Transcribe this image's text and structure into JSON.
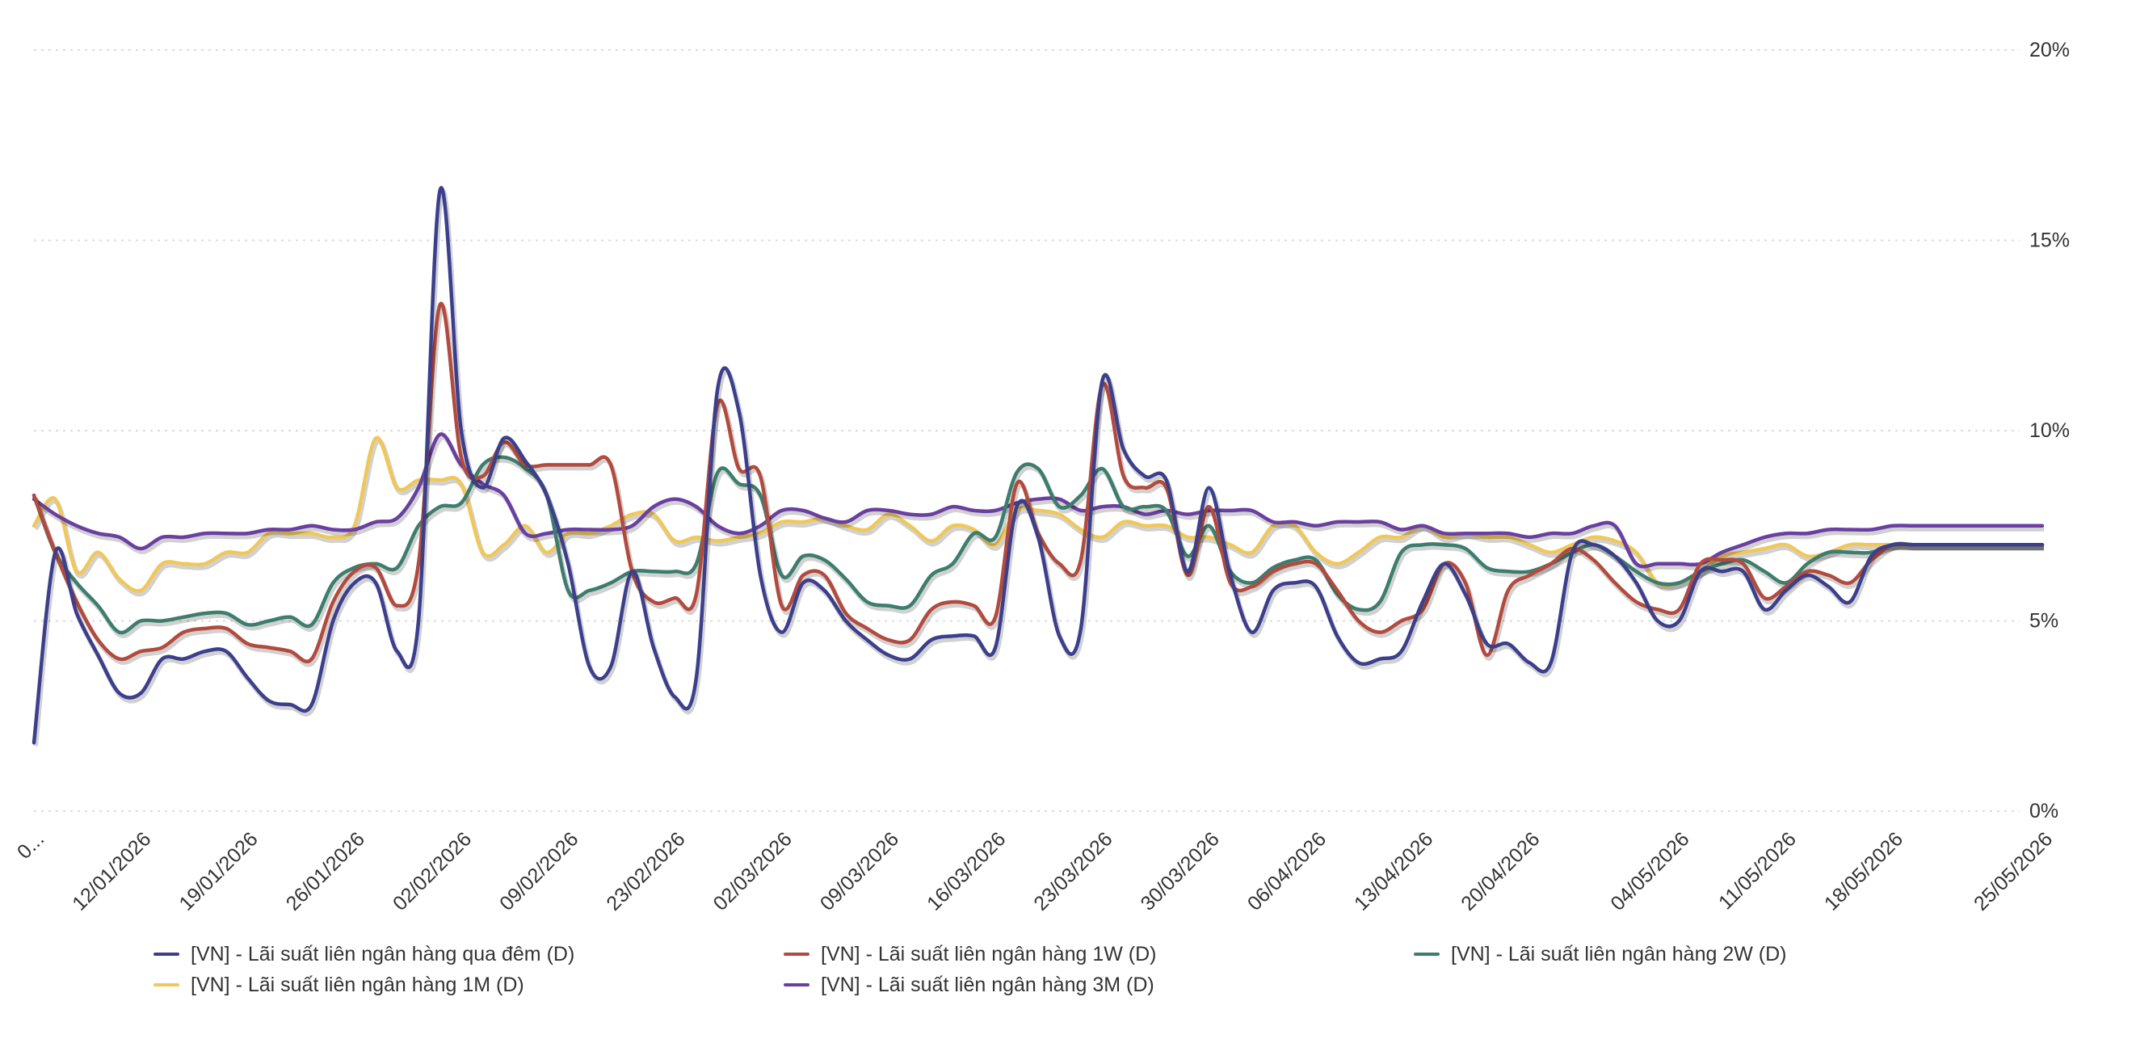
{
  "chart_data": {
    "type": "line",
    "y_ticks": [
      "0%",
      "5%",
      "10%",
      "15%",
      "20%"
    ],
    "ylim": [
      0,
      20
    ],
    "y_unit": "%",
    "grid": true,
    "legend_position": "bottom",
    "x_tick_labels": [
      "0...",
      "12/01/2026",
      "19/01/2026",
      "26/01/2026",
      "02/02/2026",
      "09/02/2026",
      "23/02/2026",
      "02/03/2026",
      "09/03/2026",
      "16/03/2026",
      "23/03/2026",
      "30/03/2026",
      "06/04/2026",
      "13/04/2026",
      "20/04/2026",
      "04/05/2026",
      "11/05/2026",
      "18/05/2026",
      "25/05/2026"
    ],
    "x_tick_positions": [
      0,
      5,
      10,
      15,
      20,
      25,
      30,
      35,
      40,
      45,
      50,
      55,
      60,
      65,
      70,
      77,
      82,
      87,
      94
    ],
    "x_range": [
      0,
      94
    ],
    "series": [
      {
        "name": "[VN] - Lãi suất liên ngân hàng qua đêm (D)",
        "color": "#3b3f8c",
        "x": [
          0,
          1,
          2,
          3,
          4,
          5,
          6,
          7,
          8,
          9,
          10,
          11,
          12,
          13,
          14,
          15,
          16,
          17,
          18,
          19,
          20,
          21,
          22,
          23,
          24,
          25,
          26,
          27,
          28,
          29,
          30,
          31,
          32,
          33,
          34,
          35,
          36,
          37,
          38,
          39,
          40,
          41,
          42,
          43,
          44,
          45,
          46,
          47,
          48,
          49,
          50,
          51,
          52,
          53,
          54,
          55,
          56,
          57,
          58,
          59,
          60,
          61,
          62,
          63,
          64,
          65,
          66,
          67,
          68,
          69,
          70,
          71,
          72,
          73,
          74,
          75,
          76,
          77,
          78,
          79,
          80,
          81,
          82,
          83,
          84,
          85,
          86,
          87,
          88,
          89,
          90,
          91,
          92,
          93,
          94
        ],
        "values": [
          1.8,
          6.8,
          5.2,
          4.1,
          3.1,
          3.1,
          4,
          4,
          4.2,
          4.2,
          3.5,
          2.9,
          2.8,
          2.8,
          5,
          6,
          6,
          4.2,
          5,
          16.3,
          10,
          8.5,
          9.8,
          9.2,
          8.3,
          6.5,
          3.8,
          3.8,
          6.3,
          4.3,
          3,
          3.5,
          11.1,
          10.5,
          6.2,
          4.7,
          6,
          5.8,
          5,
          4.5,
          4.1,
          4,
          4.5,
          4.6,
          4.6,
          4.3,
          8,
          7.2,
          4.6,
          4.8,
          11.3,
          9.5,
          8.8,
          8.7,
          6.3,
          8.5,
          6.2,
          4.7,
          5.8,
          6,
          5.9,
          4.6,
          3.9,
          4,
          4.2,
          5.5,
          6.5,
          5.7,
          4.4,
          4.4,
          3.9,
          3.9,
          6.8,
          7,
          6.7,
          6,
          5,
          5,
          6.3,
          6.3,
          6.3,
          5.3,
          5.8,
          6.2,
          5.9,
          5.5,
          6.7,
          7,
          7,
          7,
          7,
          7,
          7,
          7,
          7
        ],
        "x_order": null
      },
      {
        "name": "[VN] - Lãi suất liên ngân hàng 1W (D)",
        "color": "#b34a3e",
        "x": [
          0,
          1,
          2,
          3,
          4,
          5,
          6,
          7,
          8,
          9,
          10,
          11,
          12,
          13,
          14,
          15,
          16,
          17,
          18,
          19,
          20,
          21,
          22,
          23,
          24,
          25,
          26,
          27,
          28,
          29,
          30,
          31,
          32,
          33,
          34,
          35,
          36,
          37,
          38,
          39,
          40,
          41,
          42,
          43,
          44,
          45,
          46,
          47,
          48,
          49,
          50,
          51,
          52,
          53,
          54,
          55,
          56,
          57,
          58,
          59,
          60,
          61,
          62,
          63,
          64,
          65,
          66,
          67,
          68,
          69,
          70,
          71,
          72,
          73,
          74,
          75,
          76,
          77,
          78,
          79,
          80,
          81,
          82,
          83,
          84,
          85,
          86,
          87,
          88,
          89,
          90,
          91,
          92,
          93,
          94
        ],
        "values": [
          8.3,
          6.8,
          5.5,
          4.5,
          4,
          4.2,
          4.3,
          4.7,
          4.8,
          4.8,
          4.4,
          4.3,
          4.2,
          4,
          5.5,
          6.3,
          6.4,
          5.4,
          6.5,
          13.3,
          9.3,
          8.8,
          9.7,
          9.1,
          9.1,
          9.1,
          9.1,
          9.1,
          6.3,
          5.5,
          5.6,
          5.7,
          10.7,
          9,
          8.8,
          5.4,
          6.2,
          6.2,
          5.2,
          4.8,
          4.5,
          4.5,
          5.3,
          5.5,
          5.4,
          5.1,
          8.6,
          7.3,
          6.5,
          6.6,
          11.2,
          8.8,
          8.5,
          8.5,
          6.2,
          8,
          6,
          5.9,
          6.3,
          6.5,
          6.5,
          5.8,
          5,
          4.7,
          5,
          5.3,
          6.5,
          6,
          4.1,
          5.8,
          6.2,
          6.5,
          6.9,
          6.6,
          6,
          5.5,
          5.3,
          5.3,
          6.5,
          6.6,
          6.5,
          5.6,
          5.9,
          6.3,
          6.2,
          6,
          6.6,
          7,
          7,
          7,
          7,
          7,
          7,
          7,
          7
        ],
        "x_order": null
      },
      {
        "name": "[VN] - Lãi suất liên ngân hàng 2W (D)",
        "color": "#3d7d6e",
        "x": [
          0,
          1,
          2,
          3,
          4,
          5,
          6,
          7,
          8,
          9,
          10,
          11,
          12,
          13,
          14,
          15,
          16,
          17,
          18,
          19,
          20,
          21,
          22,
          23,
          24,
          25,
          26,
          27,
          28,
          29,
          30,
          31,
          32,
          33,
          34,
          35,
          36,
          37,
          38,
          39,
          40,
          41,
          42,
          43,
          44,
          45,
          46,
          47,
          48,
          49,
          50,
          51,
          52,
          53,
          54,
          55,
          56,
          57,
          58,
          59,
          60,
          61,
          62,
          63,
          64,
          65,
          66,
          67,
          68,
          69,
          70,
          71,
          72,
          73,
          74,
          75,
          76,
          77,
          78,
          79,
          80,
          81,
          82,
          83,
          84,
          85,
          86,
          87,
          88,
          89,
          90,
          91,
          92,
          93,
          94
        ],
        "values": [
          8.3,
          6.8,
          6,
          5.4,
          4.7,
          5,
          5,
          5.1,
          5.2,
          5.2,
          4.9,
          5,
          5.1,
          4.9,
          6,
          6.4,
          6.5,
          6.4,
          7.5,
          8,
          8.1,
          9.1,
          9.3,
          9,
          8.3,
          5.8,
          5.8,
          6,
          6.3,
          6.3,
          6.3,
          6.5,
          8.9,
          8.6,
          8.3,
          6.2,
          6.7,
          6.6,
          6.1,
          5.5,
          5.4,
          5.4,
          6.2,
          6.5,
          7.3,
          7.2,
          8.9,
          9,
          8,
          8.3,
          9,
          8,
          8,
          7.9,
          6.7,
          7.5,
          6.3,
          6,
          6.4,
          6.6,
          6.6,
          5.7,
          5.3,
          5.5,
          6.8,
          7,
          7,
          6.9,
          6.4,
          6.3,
          6.3,
          6.5,
          6.8,
          7,
          6.7,
          6.3,
          6,
          6,
          6.3,
          6.5,
          6.6,
          6.3,
          6,
          6.5,
          6.8,
          6.8,
          6.8,
          7,
          7,
          7,
          7,
          7,
          7,
          7,
          7
        ],
        "x_order": null
      },
      {
        "name": "[VN] - Lãi suất liên ngân hàng 1M (D)",
        "color": "#f0c85a",
        "x": [
          0,
          1,
          2,
          3,
          4,
          5,
          6,
          7,
          8,
          9,
          10,
          11,
          12,
          13,
          14,
          15,
          16,
          17,
          18,
          19,
          20,
          21,
          22,
          23,
          24,
          25,
          26,
          27,
          28,
          29,
          30,
          31,
          32,
          33,
          34,
          35,
          36,
          37,
          38,
          39,
          40,
          41,
          42,
          43,
          44,
          45,
          46,
          47,
          48,
          49,
          50,
          51,
          52,
          53,
          54,
          55,
          56,
          57,
          58,
          59,
          60,
          61,
          62,
          63,
          64,
          65,
          66,
          67,
          68,
          69,
          70,
          71,
          72,
          73,
          74,
          75,
          76,
          77,
          78,
          79,
          80,
          81,
          82,
          83,
          84,
          85,
          86,
          87,
          88,
          89,
          90,
          91,
          92,
          93,
          94
        ],
        "values": [
          7.5,
          8.2,
          6.3,
          6.8,
          6.1,
          5.8,
          6.5,
          6.5,
          6.5,
          6.8,
          6.8,
          7.3,
          7.3,
          7.3,
          7.2,
          7.5,
          9.8,
          8.5,
          8.7,
          8.7,
          8.6,
          6.8,
          7,
          7.5,
          6.8,
          7.3,
          7.3,
          7.5,
          7.8,
          7.8,
          7.1,
          7.2,
          7.1,
          7.2,
          7.3,
          7.6,
          7.6,
          7.7,
          7.5,
          7.4,
          7.8,
          7.5,
          7.1,
          7.5,
          7.4,
          7,
          7.9,
          7.9,
          7.8,
          7.4,
          7.2,
          7.6,
          7.5,
          7.5,
          7.2,
          7.2,
          7,
          6.8,
          7.5,
          7.5,
          6.8,
          6.5,
          6.8,
          7.2,
          7.2,
          7.5,
          7.2,
          7.3,
          7.2,
          7.2,
          7,
          6.8,
          7,
          7.2,
          7.1,
          6.8,
          6,
          6,
          6.3,
          6.7,
          6.8,
          6.9,
          7,
          6.7,
          6.8,
          7,
          7,
          7,
          7,
          7,
          7,
          7,
          7,
          7,
          7
        ],
        "x_order": null
      },
      {
        "name": "[VN] - Lãi suất liên ngân hàng 3M (D)",
        "color": "#6a3fa0",
        "x": [
          0,
          1,
          2,
          3,
          4,
          5,
          6,
          7,
          8,
          9,
          10,
          11,
          12,
          13,
          14,
          15,
          16,
          17,
          18,
          19,
          20,
          21,
          22,
          23,
          24,
          25,
          26,
          27,
          28,
          29,
          30,
          31,
          32,
          33,
          34,
          35,
          36,
          37,
          38,
          39,
          40,
          41,
          42,
          43,
          44,
          45,
          46,
          47,
          48,
          49,
          50,
          51,
          52,
          53,
          54,
          55,
          56,
          57,
          58,
          59,
          60,
          61,
          62,
          63,
          64,
          65,
          66,
          67,
          68,
          69,
          70,
          71,
          72,
          73,
          74,
          75,
          76,
          77,
          78,
          79,
          80,
          81,
          82,
          83,
          84,
          85,
          86,
          87,
          88,
          89,
          90,
          91,
          92,
          93,
          94
        ],
        "values": [
          8.2,
          7.8,
          7.5,
          7.3,
          7.2,
          6.9,
          7.2,
          7.2,
          7.3,
          7.3,
          7.3,
          7.4,
          7.4,
          7.5,
          7.4,
          7.4,
          7.6,
          7.7,
          8.5,
          9.9,
          9.1,
          8.6,
          8.3,
          7.3,
          7.3,
          7.4,
          7.4,
          7.4,
          7.5,
          8,
          8.2,
          8,
          7.5,
          7.3,
          7.5,
          7.9,
          7.9,
          7.7,
          7.6,
          7.9,
          7.9,
          7.8,
          7.8,
          8,
          7.9,
          7.9,
          8.1,
          8.2,
          8.2,
          7.9,
          8,
          8,
          7.8,
          7.9,
          7.8,
          7.9,
          7.9,
          7.9,
          7.6,
          7.6,
          7.5,
          7.6,
          7.6,
          7.6,
          7.4,
          7.5,
          7.3,
          7.3,
          7.3,
          7.3,
          7.2,
          7.3,
          7.3,
          7.5,
          7.5,
          6.5,
          6.5,
          6.5,
          6.5,
          6.8,
          7,
          7.2,
          7.3,
          7.3,
          7.4,
          7.4,
          7.4,
          7.5,
          7.5,
          7.5,
          7.5,
          7.5,
          7.5,
          7.5,
          7.5
        ],
        "x_order": null
      }
    ]
  }
}
